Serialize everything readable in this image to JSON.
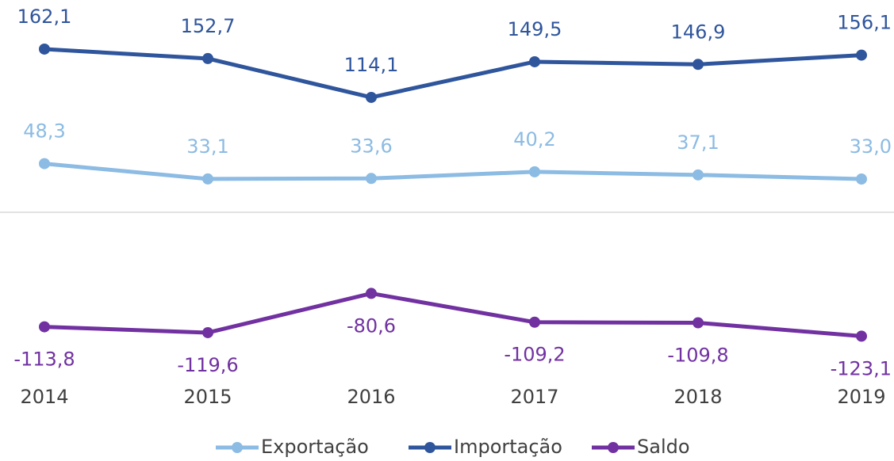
{
  "chart_data": {
    "type": "line",
    "categories": [
      "2014",
      "2015",
      "2016",
      "2017",
      "2018",
      "2019"
    ],
    "ylim": [
      -150,
      200
    ],
    "legend": "bottom",
    "series": [
      {
        "name": "Exportação",
        "color": "#8cbbe3",
        "values": [
          48.3,
          33.1,
          33.6,
          40.2,
          37.1,
          33.0
        ],
        "value_labels": [
          "48,3",
          "33,1",
          "33,6",
          "40,2",
          "37,1",
          "33,0"
        ]
      },
      {
        "name": "Importação",
        "color": "#2f559c",
        "values": [
          162.1,
          152.7,
          114.1,
          149.5,
          146.9,
          156.1
        ],
        "value_labels": [
          "162,1",
          "152,7",
          "114,1",
          "149,5",
          "146,9",
          "156,1"
        ]
      },
      {
        "name": "Saldo",
        "color": "#7131a1",
        "values": [
          -113.8,
          -119.6,
          -80.6,
          -109.2,
          -109.8,
          -123.1
        ],
        "value_labels": [
          "-113,8",
          "-119,6",
          "-80,6",
          "-109,2",
          "-109,8",
          "-123,1"
        ]
      }
    ]
  }
}
